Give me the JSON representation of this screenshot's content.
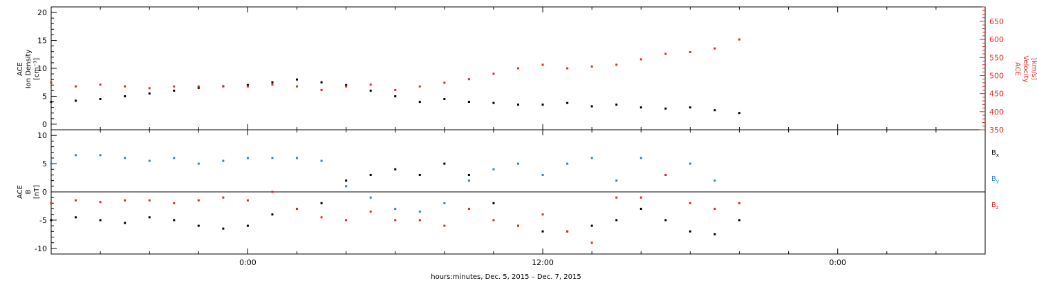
{
  "chart_data": [
    {
      "type": "scatter",
      "panel": "top",
      "ylabel": [
        "ACE",
        "Ion Density",
        "[cm⁻³]"
      ],
      "y2label": [
        "ACE",
        "Velocity",
        "[km/s]"
      ],
      "ylim": [
        -1,
        21
      ],
      "yticks": [
        0,
        5,
        10,
        15,
        20
      ],
      "y2lim": [
        350,
        690
      ],
      "y2ticks": [
        350,
        400,
        450,
        500,
        550,
        600,
        650
      ],
      "series": [
        {
          "name": "Ion Density",
          "color": "#000000",
          "axis": "left",
          "x": [
            -16,
            -14,
            -12,
            -10,
            -8,
            -6,
            -4,
            -2,
            0,
            2,
            4,
            6,
            8,
            10,
            12,
            14,
            16,
            18,
            20,
            22,
            24,
            26,
            28,
            30,
            32,
            34,
            36,
            38,
            40
          ],
          "values": [
            4,
            4.2,
            4.5,
            5,
            5.5,
            6,
            6.5,
            6.8,
            7,
            7.5,
            8,
            7.5,
            7,
            6,
            5,
            4,
            4.5,
            4,
            3.8,
            3.5,
            3.5,
            3.8,
            3.2,
            3.5,
            3,
            2.8,
            3,
            2.5,
            2
          ]
        },
        {
          "name": "Velocity",
          "color": "#e8261f",
          "axis": "right",
          "x": [
            -16,
            -14,
            -12,
            -10,
            -8,
            -6,
            -4,
            -2,
            0,
            2,
            4,
            6,
            8,
            10,
            12,
            14,
            16,
            18,
            20,
            22,
            24,
            26,
            28,
            30,
            32,
            34,
            36,
            38,
            40
          ],
          "values": [
            480,
            470,
            475,
            470,
            465,
            470,
            470,
            470,
            470,
            475,
            470,
            460,
            470,
            475,
            460,
            470,
            480,
            490,
            505,
            520,
            530,
            520,
            525,
            530,
            545,
            560,
            565,
            575,
            600
          ]
        }
      ]
    },
    {
      "type": "scatter",
      "panel": "bottom",
      "ylabel": [
        "ACE",
        "B",
        "[nT]"
      ],
      "ylim": [
        -11,
        11
      ],
      "yticks": [
        -10,
        -5,
        0,
        5,
        10
      ],
      "series": [
        {
          "name": "Bx",
          "color": "#000000",
          "x": [
            -16,
            -14,
            -12,
            -10,
            -8,
            -6,
            -4,
            -2,
            0,
            2,
            4,
            6,
            8,
            10,
            12,
            14,
            16,
            18,
            20,
            22,
            24,
            26,
            28,
            30,
            32,
            34,
            36,
            38,
            40
          ],
          "values": [
            -5,
            -4.5,
            -5,
            -5.5,
            -4.5,
            -5,
            -6,
            -6.5,
            -6,
            -4,
            -3,
            -2,
            2,
            3,
            4,
            3,
            5,
            3,
            -2,
            -6,
            -7,
            -7,
            -6,
            -5,
            -3,
            -5,
            -7,
            -7.5,
            -5
          ]
        },
        {
          "name": "By",
          "color": "#1f86d6",
          "x": [
            -16,
            -14,
            -12,
            -10,
            -8,
            -6,
            -4,
            -2,
            0,
            2,
            4,
            6,
            8,
            10,
            12,
            14,
            16,
            18,
            20,
            22,
            24,
            26,
            28,
            30,
            32,
            34,
            36,
            38,
            40
          ],
          "values": [
            5,
            6.5,
            6.5,
            6,
            5.5,
            6,
            5,
            5.5,
            6,
            6,
            6,
            5.5,
            1,
            -1,
            -3,
            -3.5,
            -2,
            2,
            4,
            5,
            3,
            5,
            6,
            2,
            6,
            3,
            5,
            2,
            -2
          ]
        },
        {
          "name": "Bz",
          "color": "#e8261f",
          "x": [
            -16,
            -14,
            -12,
            -10,
            -8,
            -6,
            -4,
            -2,
            0,
            2,
            4,
            6,
            8,
            10,
            12,
            14,
            16,
            18,
            20,
            22,
            24,
            26,
            28,
            30,
            32,
            34,
            36,
            38,
            40
          ],
          "values": [
            -2,
            -1.5,
            -1.8,
            -1.5,
            -1.5,
            -2,
            -1.5,
            -1,
            -1.5,
            0,
            -3,
            -4.5,
            -5,
            -3.5,
            -5,
            -5,
            -6,
            -3,
            -5,
            -6,
            -4,
            -7,
            -9,
            -1,
            -1,
            3,
            -2,
            -3,
            -2
          ]
        }
      ]
    }
  ],
  "x_axis": {
    "xlim": [
      -16,
      60
    ],
    "major_ticks": [
      0,
      24,
      48
    ],
    "tick_labels": [
      "0:00",
      "12:00",
      "0:00"
    ],
    "minor_step": 4,
    "label": "hours:minutes, Dec.  5, 2015 – Dec.  7, 2015"
  },
  "legend": [
    {
      "name": "Bx",
      "base": "B",
      "sub": "x",
      "color": "#000000"
    },
    {
      "name": "By",
      "base": "B",
      "sub": "y",
      "color": "#1f86d6"
    },
    {
      "name": "Bz",
      "base": "B",
      "sub": "z",
      "color": "#e8261f"
    }
  ],
  "colors": {
    "density": "#000000",
    "velocity": "#e8261f",
    "bx": "#000000",
    "by": "#1f86d6",
    "bz": "#e8261f"
  }
}
